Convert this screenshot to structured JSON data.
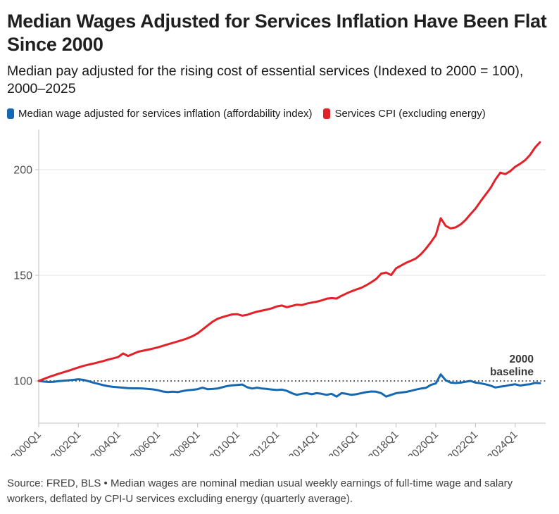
{
  "header": {
    "title": "Median Wages Adjusted for Services Inflation Have Been Flat Since 2000",
    "subtitle": "Median pay adjusted for the rising cost of essential services (Indexed to 2000 = 100), 2000–2025"
  },
  "legend": {
    "items": [
      {
        "label": "Median wage adjusted for services inflation (affordability index)",
        "color": "#1668b0"
      },
      {
        "label": "Services CPI (excluding energy)",
        "color": "#e32128"
      }
    ]
  },
  "chart_data": {
    "type": "line",
    "title": "Median Wages Adjusted for Services Inflation Have Been Flat Since 2000",
    "x_start": "2000Q1",
    "x_end": "2025Q2",
    "frequency": "quarterly",
    "x_tick_labels": [
      "2000Q1",
      "2002Q1",
      "2004Q1",
      "2006Q1",
      "2008Q1",
      "2010Q1",
      "2012Q1",
      "2014Q1",
      "2016Q1",
      "2018Q1",
      "2020Q1",
      "2022Q1",
      "2024Q1"
    ],
    "y_ticks": [
      100,
      150,
      200
    ],
    "ylim": [
      80,
      219
    ],
    "grid": "horizontal",
    "legend_position": "top",
    "baseline": {
      "value": 100,
      "label_line1": "2000",
      "label_line2": "baseline"
    },
    "series": [
      {
        "name": "Median wage adjusted for services inflation (affordability index)",
        "color": "#1668b0",
        "values": [
          100.0,
          99.7,
          99.5,
          99.6,
          99.9,
          100.1,
          100.3,
          100.5,
          100.8,
          100.5,
          99.9,
          99.2,
          98.6,
          98.0,
          97.5,
          97.2,
          97.0,
          96.8,
          96.6,
          96.5,
          96.5,
          96.4,
          96.2,
          96.0,
          95.6,
          95.0,
          94.7,
          94.9,
          94.7,
          95.2,
          95.6,
          95.8,
          96.1,
          96.8,
          96.1,
          96.2,
          96.4,
          97.0,
          97.6,
          97.9,
          98.1,
          98.3,
          97.0,
          96.4,
          96.8,
          96.4,
          96.2,
          95.9,
          95.7,
          95.9,
          95.3,
          94.2,
          93.4,
          93.9,
          94.2,
          93.7,
          94.2,
          93.9,
          93.4,
          93.9,
          92.6,
          94.2,
          93.9,
          93.4,
          93.7,
          94.2,
          94.7,
          95.0,
          94.9,
          94.2,
          92.6,
          93.4,
          94.2,
          94.5,
          94.8,
          95.3,
          95.9,
          96.4,
          96.7,
          98.1,
          98.8,
          103.1,
          100.3,
          99.2,
          99.0,
          99.2,
          99.6,
          100.0,
          99.2,
          98.9,
          98.4,
          97.8,
          96.9,
          97.3,
          97.6,
          98.1,
          98.4,
          97.8,
          98.2,
          98.4,
          99.1,
          98.9
        ]
      },
      {
        "name": "Services CPI (excluding energy)",
        "color": "#e32128",
        "values": [
          100.0,
          100.9,
          101.8,
          102.6,
          103.4,
          104.1,
          104.8,
          105.6,
          106.4,
          107.1,
          107.7,
          108.2,
          108.8,
          109.4,
          110.1,
          110.7,
          111.3,
          113.0,
          111.8,
          112.8,
          113.8,
          114.3,
          114.8,
          115.3,
          115.9,
          116.6,
          117.3,
          118.0,
          118.7,
          119.4,
          120.2,
          121.2,
          122.5,
          124.3,
          126.2,
          128.0,
          129.4,
          130.2,
          130.9,
          131.5,
          131.6,
          130.9,
          131.3,
          132.1,
          132.8,
          133.3,
          133.8,
          134.4,
          135.3,
          135.7,
          134.9,
          135.5,
          136.1,
          135.9,
          136.6,
          137.1,
          137.5,
          138.1,
          138.9,
          139.2,
          139.0,
          140.3,
          141.4,
          142.4,
          143.3,
          144.1,
          145.3,
          146.7,
          148.3,
          150.8,
          151.3,
          150.1,
          153.3,
          154.6,
          155.9,
          156.9,
          158.0,
          160.0,
          162.6,
          165.6,
          169.0,
          177.0,
          173.4,
          172.2,
          172.7,
          174.1,
          176.2,
          179.0,
          181.6,
          184.9,
          188.1,
          191.2,
          195.3,
          198.6,
          197.9,
          199.3,
          201.4,
          202.8,
          204.5,
          207.0,
          210.5,
          213.0
        ]
      }
    ]
  },
  "footer": {
    "source": "Source: FRED, BLS • Median wages are nominal median usual weekly earnings of full-time wage and salary workers, deflated by CPI-U services excluding energy (quarterly average)."
  }
}
